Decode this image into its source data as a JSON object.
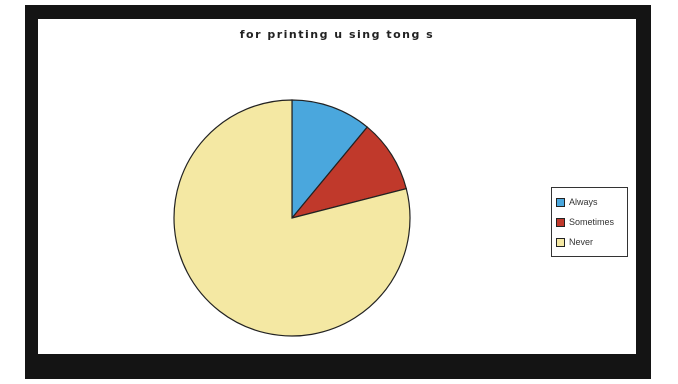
{
  "chart_data": {
    "type": "pie",
    "title": "for printing u sing tong s",
    "categories": [
      "Always",
      "Sometimes",
      "Never"
    ],
    "values": [
      11,
      10,
      79
    ],
    "colors": [
      "#4aa7dd",
      "#c0392b",
      "#f4e8a3"
    ],
    "legend_position": "right"
  }
}
